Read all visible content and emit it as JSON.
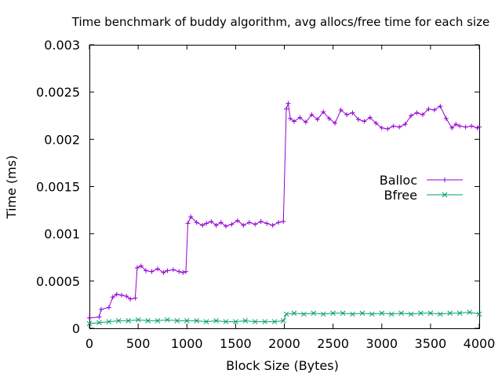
{
  "chart_data": {
    "type": "line",
    "title": "Time benchmark of buddy algorithm, avg allocs/free time for each size",
    "xlabel": "Block Size (Bytes)",
    "ylabel": "Time (ms)",
    "xlim": [
      0,
      4000
    ],
    "ylim": [
      0,
      0.003
    ],
    "x_ticks": [
      "0",
      "500",
      "1000",
      "1500",
      "2000",
      "2500",
      "3000",
      "3500",
      "4000"
    ],
    "y_ticks": [
      "0",
      "0.0005",
      "0.001",
      "0.0015",
      "0.002",
      "0.0025",
      "0.003"
    ],
    "grid": false,
    "legend_position": "right",
    "series": [
      {
        "name": "Balloc",
        "color": "#9400d3",
        "marker": "plus",
        "x": [
          0,
          100,
          120,
          200,
          240,
          280,
          330,
          380,
          420,
          470,
          490,
          530,
          580,
          640,
          700,
          760,
          800,
          860,
          920,
          960,
          990,
          1010,
          1040,
          1100,
          1160,
          1200,
          1250,
          1300,
          1350,
          1400,
          1460,
          1520,
          1580,
          1640,
          1700,
          1760,
          1820,
          1880,
          1940,
          1990,
          2020,
          2040,
          2060,
          2100,
          2160,
          2220,
          2280,
          2340,
          2400,
          2460,
          2520,
          2580,
          2640,
          2700,
          2760,
          2820,
          2880,
          2940,
          3000,
          3060,
          3120,
          3180,
          3240,
          3300,
          3360,
          3420,
          3480,
          3540,
          3600,
          3660,
          3720,
          3760,
          3800,
          3860,
          3920,
          3980,
          4000
        ],
        "y": [
          0.00011,
          0.00012,
          0.0002,
          0.00022,
          0.00033,
          0.00036,
          0.00035,
          0.00034,
          0.00031,
          0.00032,
          0.00064,
          0.00066,
          0.00061,
          0.0006,
          0.00063,
          0.00059,
          0.00061,
          0.00062,
          0.0006,
          0.00059,
          0.0006,
          0.00111,
          0.00118,
          0.00112,
          0.00109,
          0.00111,
          0.00113,
          0.00109,
          0.00112,
          0.00108,
          0.0011,
          0.00114,
          0.00109,
          0.00112,
          0.0011,
          0.00113,
          0.00111,
          0.00109,
          0.00112,
          0.00113,
          0.00232,
          0.00238,
          0.00222,
          0.00219,
          0.00223,
          0.00218,
          0.00226,
          0.00221,
          0.00229,
          0.00222,
          0.00217,
          0.00231,
          0.00226,
          0.00228,
          0.00221,
          0.00219,
          0.00223,
          0.00217,
          0.00212,
          0.00211,
          0.00214,
          0.00213,
          0.00216,
          0.00225,
          0.00228,
          0.00226,
          0.00232,
          0.00231,
          0.00235,
          0.00222,
          0.00212,
          0.00216,
          0.00214,
          0.00213,
          0.00214,
          0.00212,
          0.00213
        ]
      },
      {
        "name": "Bfree",
        "color": "#009e73",
        "marker": "cross",
        "x": [
          0,
          100,
          200,
          300,
          400,
          500,
          600,
          700,
          800,
          900,
          1000,
          1100,
          1200,
          1300,
          1400,
          1500,
          1600,
          1700,
          1800,
          1900,
          1990,
          2020,
          2100,
          2200,
          2300,
          2400,
          2500,
          2600,
          2700,
          2800,
          2900,
          3000,
          3100,
          3200,
          3300,
          3400,
          3500,
          3600,
          3700,
          3800,
          3900,
          4000
        ],
        "y": [
          5e-05,
          6e-05,
          7e-05,
          8e-05,
          8e-05,
          9e-05,
          8e-05,
          8e-05,
          9e-05,
          8e-05,
          8e-05,
          8e-05,
          7e-05,
          8e-05,
          7e-05,
          7e-05,
          8e-05,
          7e-05,
          7e-05,
          7e-05,
          8e-05,
          0.00015,
          0.00016,
          0.00015,
          0.00016,
          0.00015,
          0.00016,
          0.00016,
          0.00015,
          0.00016,
          0.00015,
          0.00016,
          0.00015,
          0.00016,
          0.00015,
          0.00016,
          0.00016,
          0.00015,
          0.00016,
          0.00016,
          0.00017,
          0.00015
        ]
      }
    ]
  }
}
